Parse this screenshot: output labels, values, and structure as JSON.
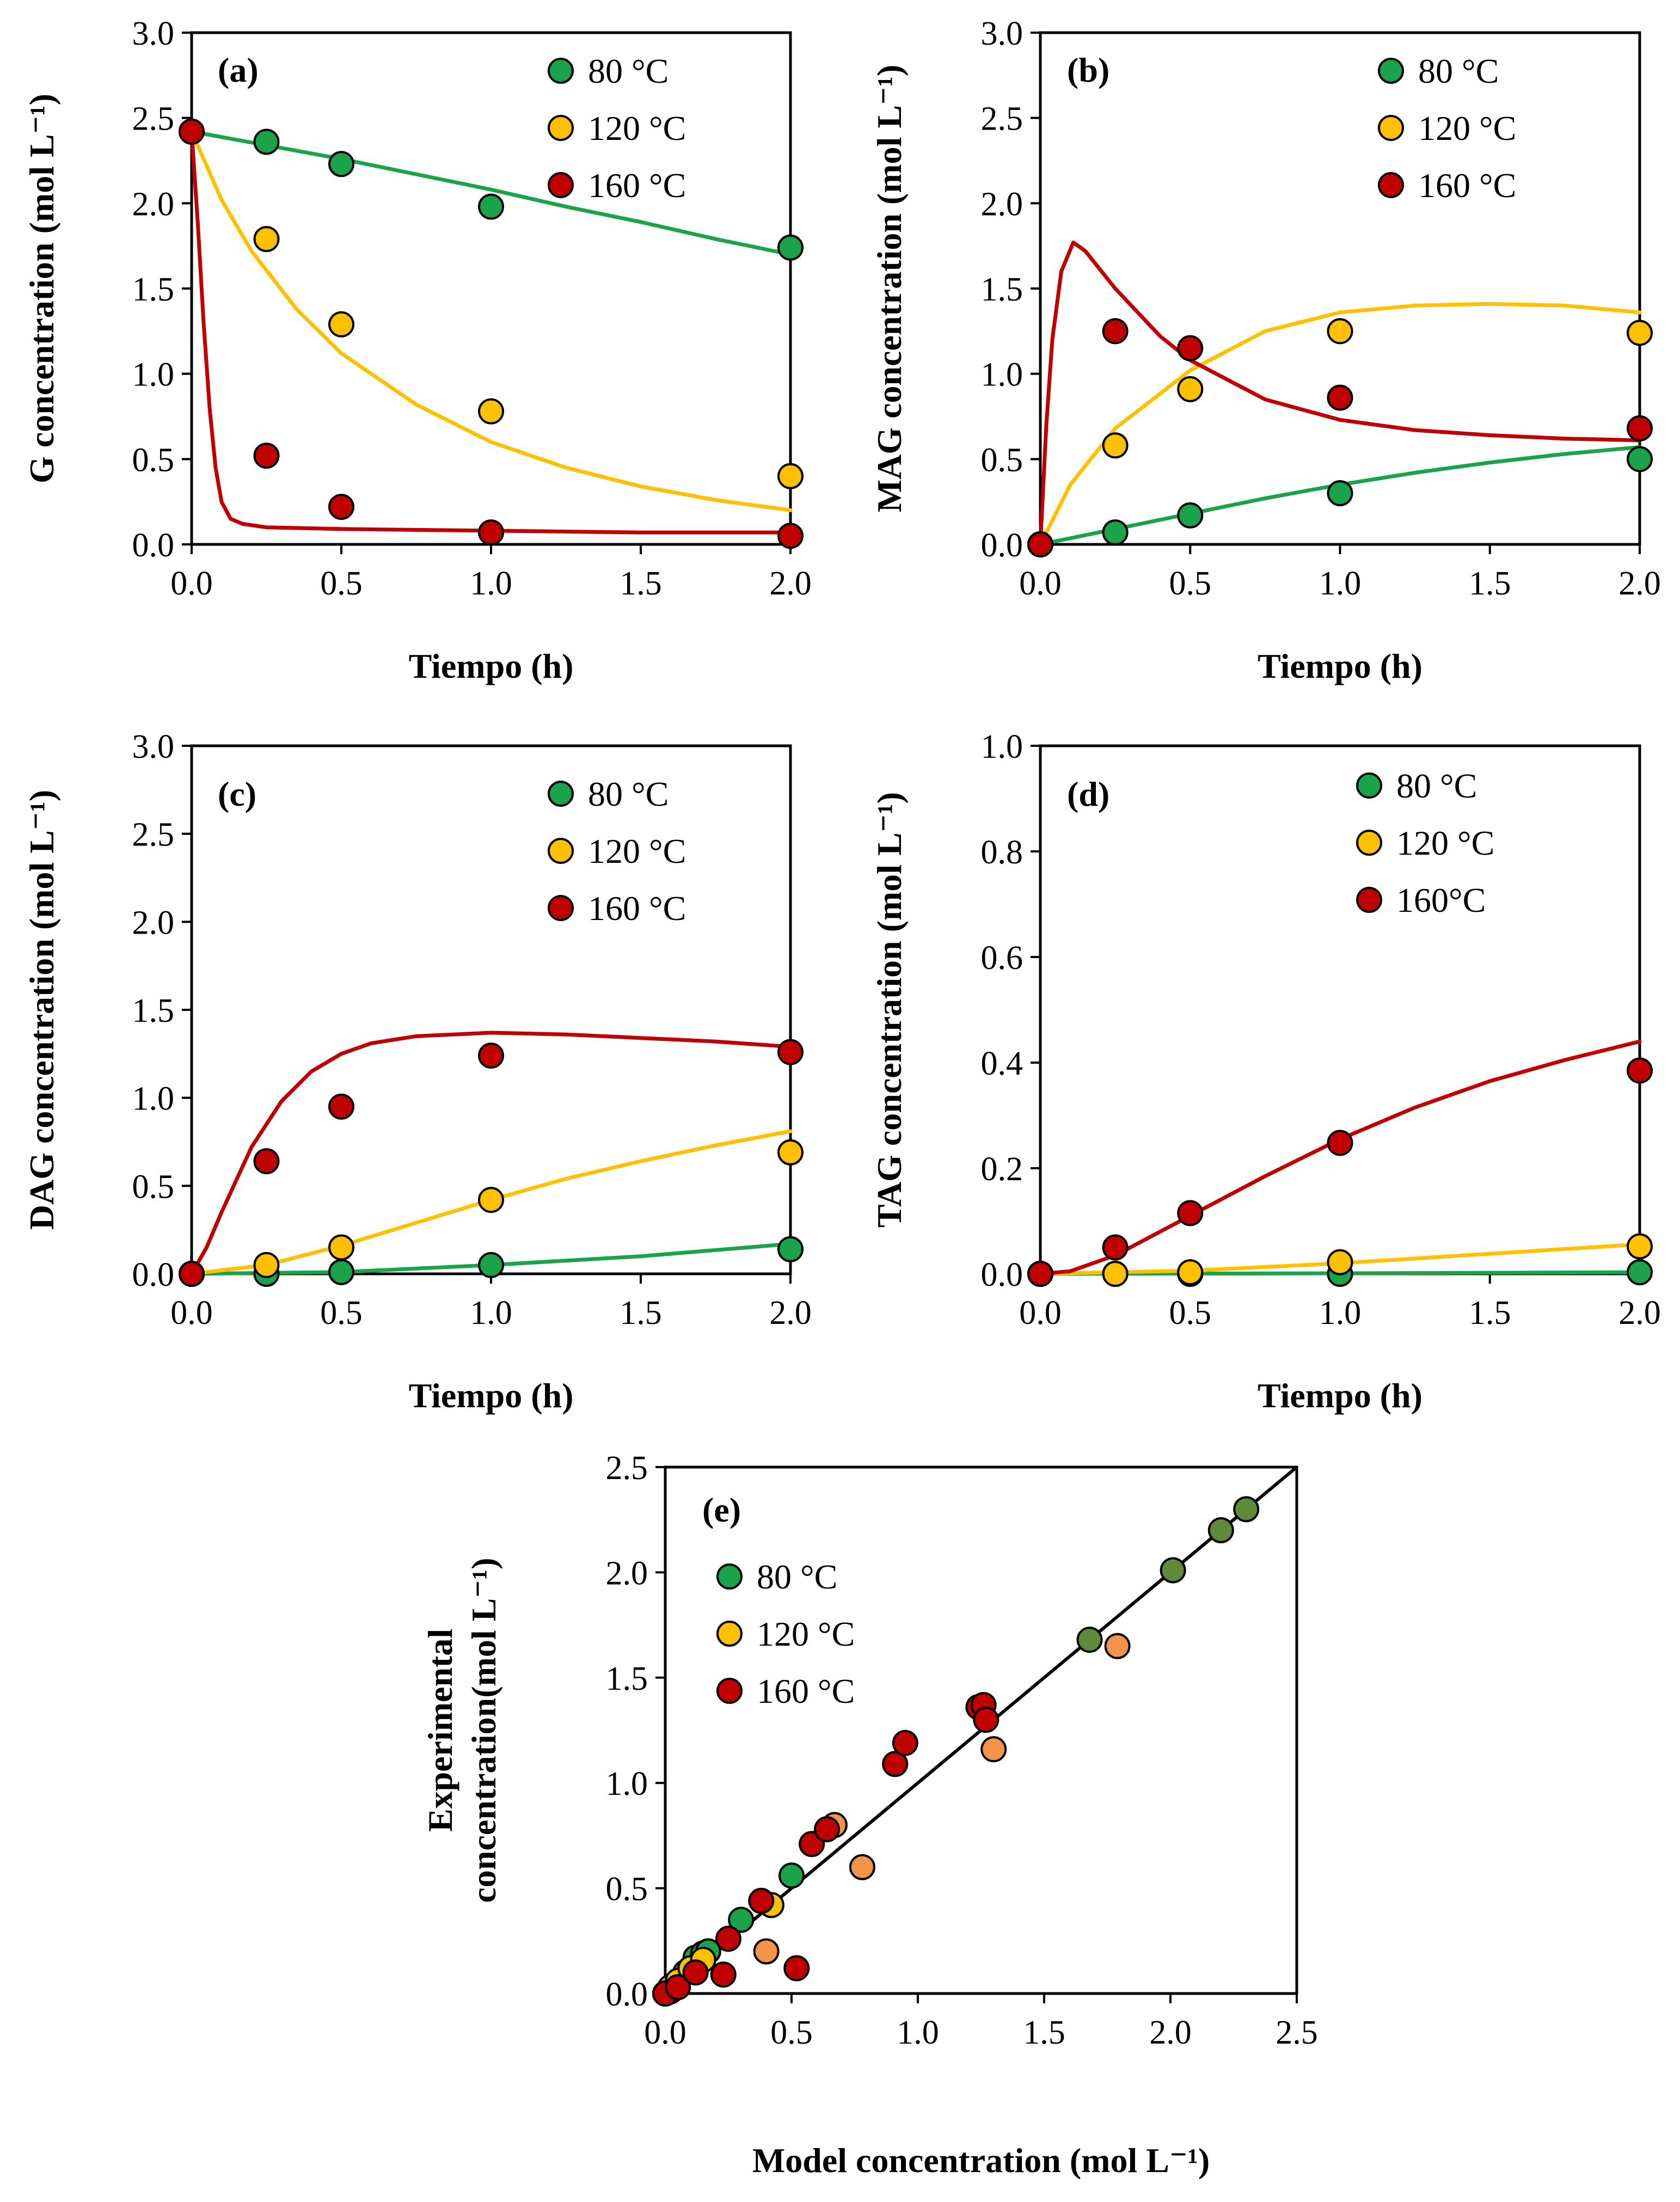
{
  "colors": {
    "80": "#1aa34a",
    "120": "#ffc000",
    "160": "#c00000",
    "120_parity": "#f2944a",
    "80_parity": "#5f8a3a",
    "identity": "#000000"
  },
  "chart_data": [
    {
      "id": "a",
      "type": "scatter+line",
      "panel_label": "(a)",
      "xlabel": "Tiempo (h)",
      "ylabel": "G concentration (mol L⁻¹)",
      "xlim": [
        0,
        2
      ],
      "ylim": [
        0,
        3
      ],
      "xticks": [
        "0.0",
        "0.5",
        "1.0",
        "1.5",
        "2.0"
      ],
      "yticks": [
        "0.0",
        "0.5",
        "1.0",
        "1.5",
        "2.0",
        "2.5",
        "3.0"
      ],
      "legend": [
        "80 °C",
        "120 °C",
        "160 °C"
      ],
      "legend_position": "top-right",
      "series": [
        {
          "name": "80 °C",
          "points": [
            [
              0,
              2.42
            ],
            [
              0.25,
              2.36
            ],
            [
              0.5,
              2.23
            ],
            [
              1,
              1.98
            ],
            [
              2,
              1.74
            ]
          ],
          "curve": [
            [
              0,
              2.42
            ],
            [
              0.25,
              2.34
            ],
            [
              0.5,
              2.26
            ],
            [
              0.75,
              2.17
            ],
            [
              1,
              2.08
            ],
            [
              1.25,
              1.98
            ],
            [
              1.5,
              1.89
            ],
            [
              1.75,
              1.79
            ],
            [
              2,
              1.7
            ]
          ]
        },
        {
          "name": "120 °C",
          "points": [
            [
              0,
              2.42
            ],
            [
              0.25,
              1.79
            ],
            [
              0.5,
              1.29
            ],
            [
              1,
              0.78
            ],
            [
              2,
              0.4
            ]
          ],
          "curve": [
            [
              0,
              2.42
            ],
            [
              0.1,
              2.02
            ],
            [
              0.2,
              1.72
            ],
            [
              0.35,
              1.38
            ],
            [
              0.5,
              1.12
            ],
            [
              0.75,
              0.82
            ],
            [
              1,
              0.6
            ],
            [
              1.25,
              0.45
            ],
            [
              1.5,
              0.34
            ],
            [
              1.75,
              0.26
            ],
            [
              2,
              0.2
            ]
          ]
        },
        {
          "name": "160 °C",
          "points": [
            [
              0,
              2.42
            ],
            [
              0.25,
              0.52
            ],
            [
              0.5,
              0.22
            ],
            [
              1,
              0.07
            ],
            [
              2,
              0.05
            ]
          ],
          "curve": [
            [
              0,
              2.42
            ],
            [
              0.02,
              1.9
            ],
            [
              0.04,
              1.3
            ],
            [
              0.06,
              0.8
            ],
            [
              0.08,
              0.45
            ],
            [
              0.1,
              0.25
            ],
            [
              0.13,
              0.15
            ],
            [
              0.17,
              0.12
            ],
            [
              0.25,
              0.1
            ],
            [
              0.5,
              0.09
            ],
            [
              1,
              0.08
            ],
            [
              1.5,
              0.07
            ],
            [
              2,
              0.07
            ]
          ]
        }
      ]
    },
    {
      "id": "b",
      "type": "scatter+line",
      "panel_label": "(b)",
      "xlabel": "Tiempo (h)",
      "ylabel": "MAG concentration (mol L⁻¹)",
      "xlim": [
        0,
        2
      ],
      "ylim": [
        0,
        3
      ],
      "xticks": [
        "0.0",
        "0.5",
        "1.0",
        "1.5",
        "2.0"
      ],
      "yticks": [
        "0.0",
        "0.5",
        "1.0",
        "1.5",
        "2.0",
        "2.5",
        "3.0"
      ],
      "legend": [
        "80 °C",
        "120 °C",
        "160 °C"
      ],
      "legend_position": "top-right",
      "series": [
        {
          "name": "80 °C",
          "points": [
            [
              0,
              0
            ],
            [
              0.25,
              0.07
            ],
            [
              0.5,
              0.17
            ],
            [
              1,
              0.3
            ],
            [
              2,
              0.5
            ]
          ],
          "curve": [
            [
              0,
              0
            ],
            [
              0.25,
              0.09
            ],
            [
              0.5,
              0.18
            ],
            [
              0.75,
              0.27
            ],
            [
              1,
              0.35
            ],
            [
              1.25,
              0.42
            ],
            [
              1.5,
              0.48
            ],
            [
              1.75,
              0.53
            ],
            [
              2,
              0.57
            ]
          ]
        },
        {
          "name": "120 °C",
          "points": [
            [
              0,
              0
            ],
            [
              0.25,
              0.58
            ],
            [
              0.5,
              0.91
            ],
            [
              1,
              1.25
            ],
            [
              2,
              1.24
            ]
          ],
          "curve": [
            [
              0,
              0
            ],
            [
              0.1,
              0.35
            ],
            [
              0.25,
              0.68
            ],
            [
              0.5,
              1.02
            ],
            [
              0.75,
              1.25
            ],
            [
              1,
              1.36
            ],
            [
              1.25,
              1.4
            ],
            [
              1.5,
              1.41
            ],
            [
              1.75,
              1.4
            ],
            [
              2,
              1.36
            ]
          ]
        },
        {
          "name": "160 °C",
          "points": [
            [
              0,
              0
            ],
            [
              0.25,
              1.25
            ],
            [
              0.5,
              1.15
            ],
            [
              1,
              0.86
            ],
            [
              2,
              0.68
            ]
          ],
          "curve": [
            [
              0,
              0
            ],
            [
              0.02,
              0.7
            ],
            [
              0.04,
              1.2
            ],
            [
              0.07,
              1.6
            ],
            [
              0.11,
              1.77
            ],
            [
              0.15,
              1.72
            ],
            [
              0.25,
              1.5
            ],
            [
              0.4,
              1.22
            ],
            [
              0.5,
              1.08
            ],
            [
              0.75,
              0.85
            ],
            [
              1,
              0.73
            ],
            [
              1.25,
              0.67
            ],
            [
              1.5,
              0.64
            ],
            [
              1.75,
              0.62
            ],
            [
              2,
              0.61
            ]
          ]
        }
      ]
    },
    {
      "id": "c",
      "type": "scatter+line",
      "panel_label": "(c)",
      "xlabel": "Tiempo (h)",
      "ylabel": "DAG concentration (mol L⁻¹)",
      "xlim": [
        0,
        2
      ],
      "ylim": [
        0,
        3
      ],
      "xticks": [
        "0.0",
        "0.5",
        "1.0",
        "1.5",
        "2.0"
      ],
      "yticks": [
        "0.0",
        "0.5",
        "1.0",
        "1.5",
        "2.0",
        "2.5",
        "3.0"
      ],
      "legend": [
        "80 °C",
        "120 °C",
        "160 °C"
      ],
      "legend_position": "top-right",
      "series": [
        {
          "name": "80 °C",
          "points": [
            [
              0,
              0
            ],
            [
              0.25,
              0
            ],
            [
              0.5,
              0.01
            ],
            [
              1,
              0.05
            ],
            [
              2,
              0.14
            ]
          ],
          "curve": [
            [
              0,
              0
            ],
            [
              0.5,
              0.01
            ],
            [
              1,
              0.05
            ],
            [
              1.5,
              0.1
            ],
            [
              2,
              0.17
            ]
          ]
        },
        {
          "name": "120 °C",
          "points": [
            [
              0,
              0
            ],
            [
              0.25,
              0.05
            ],
            [
              0.5,
              0.15
            ],
            [
              1,
              0.42
            ],
            [
              2,
              0.69
            ]
          ],
          "curve": [
            [
              0,
              0
            ],
            [
              0.25,
              0.05
            ],
            [
              0.5,
              0.16
            ],
            [
              0.75,
              0.29
            ],
            [
              1,
              0.42
            ],
            [
              1.25,
              0.54
            ],
            [
              1.5,
              0.64
            ],
            [
              1.75,
              0.73
            ],
            [
              2,
              0.81
            ]
          ]
        },
        {
          "name": "160 °C",
          "points": [
            [
              0,
              0
            ],
            [
              0.25,
              0.64
            ],
            [
              0.5,
              0.95
            ],
            [
              1,
              1.24
            ],
            [
              2,
              1.26
            ]
          ],
          "curve": [
            [
              0,
              0
            ],
            [
              0.05,
              0.15
            ],
            [
              0.1,
              0.35
            ],
            [
              0.2,
              0.72
            ],
            [
              0.3,
              0.98
            ],
            [
              0.4,
              1.15
            ],
            [
              0.5,
              1.25
            ],
            [
              0.6,
              1.31
            ],
            [
              0.75,
              1.35
            ],
            [
              1,
              1.37
            ],
            [
              1.25,
              1.36
            ],
            [
              1.5,
              1.34
            ],
            [
              1.75,
              1.32
            ],
            [
              2,
              1.29
            ]
          ]
        }
      ]
    },
    {
      "id": "d",
      "type": "scatter+line",
      "panel_label": "(d)",
      "xlabel": "Tiempo (h)",
      "ylabel": "TAG concentration (mol L⁻¹)",
      "xlim": [
        0,
        2
      ],
      "ylim": [
        0,
        1
      ],
      "xticks": [
        "0.0",
        "0.5",
        "1.0",
        "1.5",
        "2.0"
      ],
      "yticks": [
        "0.0",
        "0.2",
        "0.4",
        "0.6",
        "0.8",
        "1.0"
      ],
      "legend": [
        "80 °C",
        "120 °C",
        "160°C"
      ],
      "legend_position": "top-right",
      "series": [
        {
          "name": "80 °C",
          "points": [
            [
              0,
              0
            ],
            [
              0.25,
              0
            ],
            [
              0.5,
              0
            ],
            [
              1,
              0
            ],
            [
              2,
              0.003
            ]
          ],
          "curve": [
            [
              0,
              0
            ],
            [
              1,
              0.001
            ],
            [
              2,
              0.003
            ]
          ]
        },
        {
          "name": "120 °C",
          "points": [
            [
              0,
              0
            ],
            [
              0.25,
              0
            ],
            [
              0.5,
              0.003
            ],
            [
              1,
              0.022
            ],
            [
              2,
              0.052
            ]
          ],
          "curve": [
            [
              0,
              0
            ],
            [
              0.5,
              0.006
            ],
            [
              1,
              0.02
            ],
            [
              1.5,
              0.038
            ],
            [
              2,
              0.056
            ]
          ]
        },
        {
          "name": "160°C",
          "points": [
            [
              0,
              0
            ],
            [
              0.25,
              0.05
            ],
            [
              0.5,
              0.115
            ],
            [
              1,
              0.248
            ],
            [
              2,
              0.385
            ]
          ],
          "curve": [
            [
              0,
              0
            ],
            [
              0.1,
              0.005
            ],
            [
              0.25,
              0.035
            ],
            [
              0.5,
              0.11
            ],
            [
              0.75,
              0.185
            ],
            [
              1,
              0.255
            ],
            [
              1.25,
              0.315
            ],
            [
              1.5,
              0.365
            ],
            [
              1.75,
              0.405
            ],
            [
              2,
              0.44
            ]
          ]
        }
      ]
    },
    {
      "id": "e",
      "type": "scatter",
      "panel_label": "(e)",
      "xlabel": "Model concentration (mol L⁻¹)",
      "ylabel_line1": "Experimental",
      "ylabel_line2": "concentration(mol L⁻¹)",
      "xlim": [
        0,
        2.5
      ],
      "ylim": [
        0,
        2.5
      ],
      "xticks": [
        "0.0",
        "0.5",
        "1.0",
        "1.5",
        "2.0",
        "2.5"
      ],
      "yticks": [
        "0.0",
        "0.5",
        "1.0",
        "1.5",
        "2.0",
        "2.5"
      ],
      "legend": [
        "80 °C",
        "120 °C",
        "160 °C"
      ],
      "legend_position": "top-left",
      "identity_line": [
        [
          0,
          0
        ],
        [
          2.5,
          2.5
        ]
      ],
      "series": [
        {
          "name": "80 °C",
          "points": [
            [
              0,
              0
            ],
            [
              0.02,
              0.01
            ],
            [
              0.05,
              0.05
            ],
            [
              0.08,
              0.1
            ],
            [
              0.12,
              0.17
            ],
            [
              0.15,
              0.19
            ],
            [
              0.17,
              0.2
            ],
            [
              0.3,
              0.35
            ],
            [
              0.5,
              0.56
            ],
            [
              1.68,
              1.68
            ],
            [
              2.01,
              2.01
            ],
            [
              2.2,
              2.2
            ],
            [
              2.3,
              2.3
            ]
          ]
        },
        {
          "name": "120 °C",
          "points": [
            [
              0,
              0
            ],
            [
              0.02,
              0.03
            ],
            [
              0.05,
              0.06
            ],
            [
              0.1,
              0.12
            ],
            [
              0.15,
              0.16
            ],
            [
              0.42,
              0.42
            ],
            [
              0.4,
              0.2
            ],
            [
              0.67,
              0.8
            ],
            [
              0.78,
              0.6
            ],
            [
              1.3,
              1.16
            ],
            [
              1.79,
              1.65
            ]
          ]
        },
        {
          "name": "160 °C",
          "points": [
            [
              0,
              0
            ],
            [
              0.05,
              0.03
            ],
            [
              0.12,
              0.1
            ],
            [
              0.23,
              0.09
            ],
            [
              0.25,
              0.26
            ],
            [
              0.38,
              0.44
            ],
            [
              0.52,
              0.12
            ],
            [
              0.58,
              0.71
            ],
            [
              0.64,
              0.78
            ],
            [
              0.91,
              1.09
            ],
            [
              0.95,
              1.19
            ],
            [
              1.24,
              1.36
            ],
            [
              1.26,
              1.37
            ],
            [
              1.27,
              1.3
            ]
          ]
        }
      ]
    }
  ]
}
